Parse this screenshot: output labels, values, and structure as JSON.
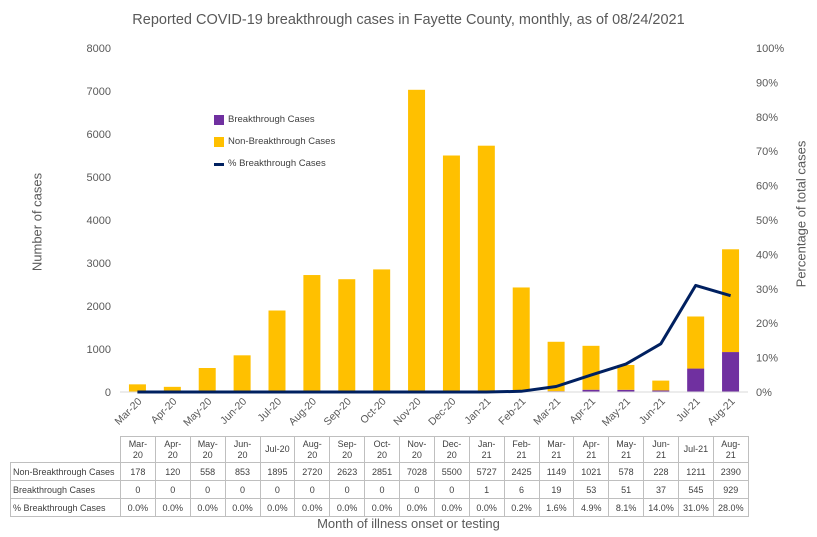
{
  "chart_data": {
    "type": "bar",
    "title": "Reported COVID-19 breakthrough cases in Fayette County, monthly, as of 08/24/2021",
    "xlabel": "Month of illness onset or testing",
    "ylabel": "Number of cases",
    "y2label": "Percentage of total cases",
    "stacked": true,
    "categories": [
      "Mar-20",
      "Apr-20",
      "May-20",
      "Jun-20",
      "Jul-20",
      "Aug-20",
      "Sep-20",
      "Oct-20",
      "Nov-20",
      "Dec-20",
      "Jan-21",
      "Feb-21",
      "Mar-21",
      "Apr-21",
      "May-21",
      "Jun-21",
      "Jul-21",
      "Aug-21"
    ],
    "ylim": [
      0,
      8000
    ],
    "yticks": [
      "0",
      "1000",
      "2000",
      "3000",
      "4000",
      "5000",
      "6000",
      "7000",
      "8000"
    ],
    "y2lim": [
      0,
      100
    ],
    "y2ticks": [
      "0%",
      "10%",
      "20%",
      "30%",
      "40%",
      "50%",
      "60%",
      "70%",
      "80%",
      "90%",
      "100%"
    ],
    "legend_position": "upper-left",
    "series": [
      {
        "name": "Breakthrough Cases",
        "kind": "bar",
        "color": "#7030A0",
        "values": [
          0,
          0,
          0,
          0,
          0,
          0,
          0,
          0,
          0,
          0,
          1,
          6,
          19,
          53,
          51,
          37,
          545,
          929
        ]
      },
      {
        "name": "Non-Breakthrough Cases",
        "kind": "bar",
        "color": "#FFC000",
        "values": [
          178,
          120,
          558,
          853,
          1895,
          2720,
          2623,
          2851,
          7028,
          5500,
          5727,
          2425,
          1149,
          1021,
          578,
          228,
          1211,
          2390
        ]
      },
      {
        "name": "% Breakthrough Cases",
        "kind": "line",
        "axis": "right",
        "color": "#002060",
        "values": [
          0,
          0,
          0,
          0,
          0,
          0,
          0,
          0,
          0,
          0,
          0,
          0.2,
          1.6,
          4.9,
          8.1,
          14.0,
          31.0,
          28.0
        ]
      }
    ],
    "table": {
      "header": [
        "Mar-\n20",
        "Apr-\n20",
        "May-\n20",
        "Jun-\n20",
        "Jul-20",
        "Aug-\n20",
        "Sep-\n20",
        "Oct-\n20",
        "Nov-\n20",
        "Dec-\n20",
        "Jan-\n21",
        "Feb-\n21",
        "Mar-\n21",
        "Apr-\n21",
        "May-\n21",
        "Jun-\n21",
        "Jul-21",
        "Aug-\n21"
      ],
      "rows": [
        {
          "label": "Non-Breakthrough Cases",
          "cells": [
            "178",
            "120",
            "558",
            "853",
            "1895",
            "2720",
            "2623",
            "2851",
            "7028",
            "5500",
            "5727",
            "2425",
            "1149",
            "1021",
            "578",
            "228",
            "1211",
            "2390"
          ]
        },
        {
          "label": "Breakthrough Cases",
          "cells": [
            "0",
            "0",
            "0",
            "0",
            "0",
            "0",
            "0",
            "0",
            "0",
            "0",
            "1",
            "6",
            "19",
            "53",
            "51",
            "37",
            "545",
            "929"
          ]
        },
        {
          "label": "% Breakthrough Cases",
          "cells": [
            "0.0%",
            "0.0%",
            "0.0%",
            "0.0%",
            "0.0%",
            "0.0%",
            "0.0%",
            "0.0%",
            "0.0%",
            "0.0%",
            "0.0%",
            "0.2%",
            "1.6%",
            "4.9%",
            "8.1%",
            "14.0%",
            "31.0%",
            "28.0%"
          ]
        }
      ]
    }
  }
}
